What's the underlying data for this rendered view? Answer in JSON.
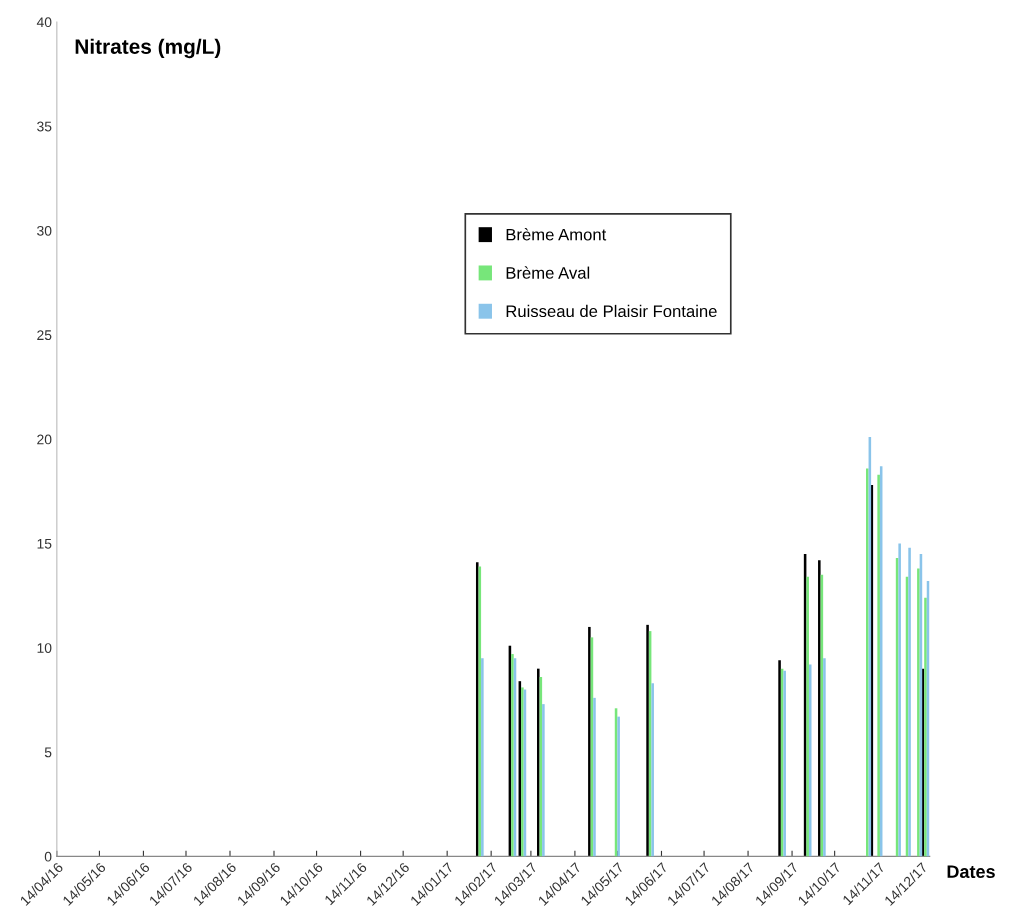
{
  "chart_data": {
    "type": "bar",
    "title": "Nitrates (mg/L)",
    "xlabel": "Dates",
    "x": [
      "2017-02-06",
      "2017-03-01",
      "2017-03-08",
      "2017-03-21",
      "2017-04-26",
      "2017-05-13",
      "2017-06-06",
      "2017-09-07",
      "2017-09-25",
      "2017-10-05",
      "2017-11-06",
      "2017-11-11",
      "2017-11-14",
      "2017-11-27",
      "2017-12-04",
      "2017-12-12",
      "2017-12-17"
    ],
    "series": [
      {
        "name": "Brème Amont",
        "color": "#000000",
        "values": [
          14.1,
          10.1,
          8.4,
          9.0,
          11.0,
          null,
          11.1,
          9.4,
          14.5,
          14.2,
          null,
          17.8,
          null,
          null,
          null,
          null,
          9.0
        ]
      },
      {
        "name": "Brème Aval",
        "color": "#77e67a",
        "values": [
          13.9,
          9.7,
          8.1,
          8.6,
          10.5,
          7.1,
          10.8,
          9.0,
          13.4,
          13.5,
          18.6,
          null,
          18.3,
          14.3,
          13.4,
          13.8,
          12.4
        ]
      },
      {
        "name": "Ruisseau de Plaisir Fontaine",
        "color": "#8ac4ea",
        "values": [
          9.5,
          9.5,
          8.0,
          7.3,
          7.6,
          6.7,
          8.3,
          8.9,
          9.2,
          9.5,
          20.1,
          null,
          18.7,
          15.0,
          14.8,
          14.5,
          13.2
        ]
      }
    ],
    "xlim": [
      "2016-04-14",
      "2017-12-20"
    ],
    "xticks": [
      {
        "value": "2016-04-14",
        "label": "14/04/16"
      },
      {
        "value": "2016-05-14",
        "label": "14/05/16"
      },
      {
        "value": "2016-06-14",
        "label": "14/06/16"
      },
      {
        "value": "2016-07-14",
        "label": "14/07/16"
      },
      {
        "value": "2016-08-14",
        "label": "14/08/16"
      },
      {
        "value": "2016-09-14",
        "label": "14/09/16"
      },
      {
        "value": "2016-10-14",
        "label": "14/10/16"
      },
      {
        "value": "2016-11-14",
        "label": "14/11/16"
      },
      {
        "value": "2016-12-14",
        "label": "14/12/16"
      },
      {
        "value": "2017-01-14",
        "label": "14/01/17"
      },
      {
        "value": "2017-02-14",
        "label": "14/02/17"
      },
      {
        "value": "2017-03-14",
        "label": "14/03/17"
      },
      {
        "value": "2017-04-14",
        "label": "14/04/17"
      },
      {
        "value": "2017-05-14",
        "label": "14/05/17"
      },
      {
        "value": "2017-06-14",
        "label": "14/06/17"
      },
      {
        "value": "2017-07-14",
        "label": "14/07/17"
      },
      {
        "value": "2017-08-14",
        "label": "14/08/17"
      },
      {
        "value": "2017-09-14",
        "label": "14/09/17"
      },
      {
        "value": "2017-10-14",
        "label": "14/10/17"
      },
      {
        "value": "2017-11-14",
        "label": "14/11/17"
      },
      {
        "value": "2017-12-14",
        "label": "14/12/17"
      }
    ],
    "ylim": [
      0,
      40
    ],
    "yticks": [
      0,
      5,
      10,
      15,
      20,
      25,
      30,
      35,
      40
    ],
    "grid": false,
    "legend": "top"
  }
}
